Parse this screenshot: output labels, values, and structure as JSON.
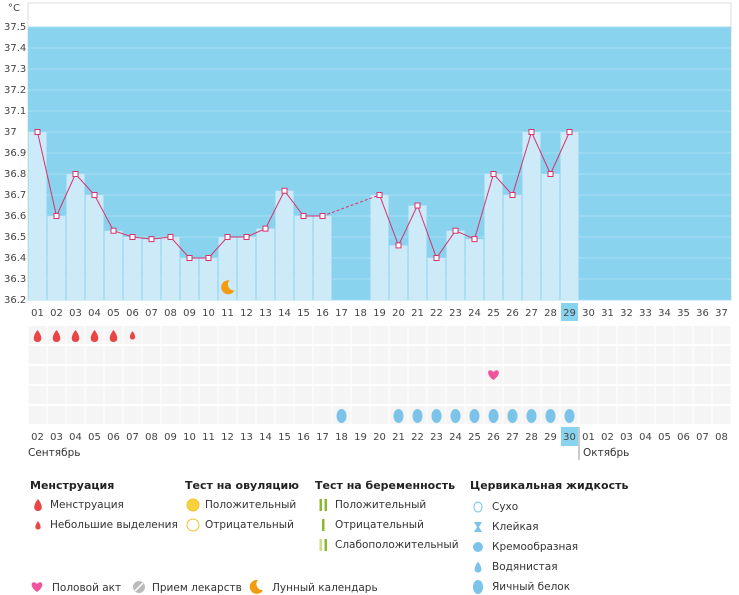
{
  "chart_data": {
    "type": "line",
    "unit": "°C",
    "days": [
      "01",
      "02",
      "03",
      "04",
      "05",
      "06",
      "07",
      "08",
      "09",
      "10",
      "11",
      "12",
      "13",
      "14",
      "15",
      "16",
      "17",
      "18",
      "19",
      "20",
      "21",
      "22",
      "23",
      "24",
      "25",
      "26",
      "27",
      "28",
      "29",
      "30",
      "31",
      "32",
      "33",
      "34",
      "35",
      "36",
      "37"
    ],
    "values": [
      37.0,
      36.6,
      36.8,
      36.7,
      36.53,
      36.5,
      36.49,
      36.5,
      36.4,
      36.4,
      36.5,
      36.5,
      36.54,
      36.72,
      36.6,
      36.6,
      null,
      null,
      36.7,
      36.46,
      36.65,
      36.4,
      36.53,
      36.49,
      36.8,
      36.7,
      37.0,
      36.8,
      37.0,
      null,
      null,
      null,
      null,
      null,
      null,
      null,
      null
    ],
    "ylim": [
      36.2,
      37.5
    ],
    "yticks": [
      36.2,
      36.3,
      36.4,
      36.5,
      36.6,
      36.7,
      36.8,
      36.9,
      37,
      37.1,
      37.2,
      37.3,
      37.4,
      37.5
    ],
    "color": "#d6336c",
    "highlight": 28,
    "moon": [
      10
    ]
  },
  "calendar": {
    "dates": [
      "02",
      "03",
      "04",
      "05",
      "06",
      "07",
      "08",
      "09",
      "10",
      "11",
      "12",
      "13",
      "14",
      "15",
      "16",
      "17",
      "18",
      "19",
      "20",
      "21",
      "22",
      "23",
      "24",
      "25",
      "26",
      "27",
      "28",
      "29",
      "30",
      "01",
      "02",
      "03",
      "04",
      "05",
      "06",
      "07",
      "08"
    ],
    "weekend": [
      true,
      true,
      false,
      false,
      false,
      false,
      false,
      true,
      true,
      false,
      false,
      false,
      false,
      false,
      true,
      true,
      false,
      false,
      false,
      false,
      false,
      true,
      true,
      false,
      false,
      false,
      false,
      false,
      true,
      true,
      false,
      false,
      false,
      false,
      false,
      true,
      true
    ],
    "highlight": 28,
    "months": [
      "Сентябрь",
      "Октябрь"
    ],
    "menstruation": [
      0,
      1,
      2,
      3,
      4
    ],
    "spotting": [
      5
    ],
    "intercourse": [
      24
    ],
    "egg_white": [
      16,
      19,
      20,
      21,
      22,
      23,
      24,
      25,
      26,
      27,
      28
    ]
  },
  "legend": {
    "sections": [
      {
        "title": "Менструация",
        "items": [
          "Менструация",
          "Небольшие выделения"
        ]
      },
      {
        "title": "Тест на овуляцию",
        "items": [
          "Положительный",
          "Отрицательный"
        ]
      },
      {
        "title": "Тест на беременность",
        "items": [
          "Положительный",
          "Отрицательный",
          "Слабоположительный"
        ]
      },
      {
        "title": "Цервикальная жидкость",
        "items": [
          "Сухо",
          "Клейкая",
          "Кремообразная",
          "Водянистая",
          "Яичный белок"
        ]
      }
    ],
    "bottom": [
      "Половой акт",
      "Прием лекарств",
      "Лунный календарь"
    ]
  }
}
